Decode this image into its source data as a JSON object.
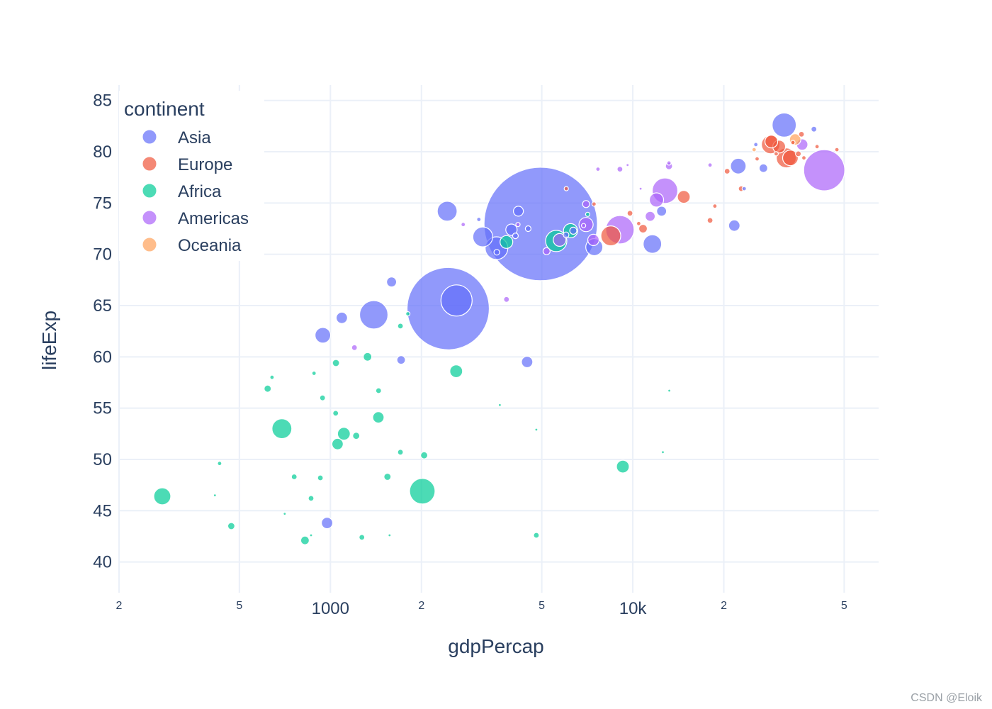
{
  "chart_data": {
    "type": "scatter",
    "variant": "bubble",
    "xlabel": "gdpPercap",
    "ylabel": "lifeExp",
    "xscale": "log",
    "xlim": [
      200,
      65000
    ],
    "ylim": [
      37,
      86.5
    ],
    "x_ticks": [
      {
        "value": 200,
        "label": "2"
      },
      {
        "value": 500,
        "label": "5"
      },
      {
        "value": 1000,
        "label": "1000"
      },
      {
        "value": 2000,
        "label": "2"
      },
      {
        "value": 5000,
        "label": "5"
      },
      {
        "value": 10000,
        "label": "10k"
      },
      {
        "value": 20000,
        "label": "2"
      },
      {
        "value": 50000,
        "label": "5"
      }
    ],
    "y_ticks": [
      40,
      45,
      50,
      55,
      60,
      65,
      70,
      75,
      80,
      85
    ],
    "legend": {
      "title": "continent",
      "placement": "top-left",
      "items": [
        {
          "name": "Asia",
          "color": "#636efa"
        },
        {
          "name": "Europe",
          "color": "#ef553b"
        },
        {
          "name": "Africa",
          "color": "#00cc96"
        },
        {
          "name": "Americas",
          "color": "#ab63fa"
        },
        {
          "name": "Oceania",
          "color": "#ffa15a"
        }
      ]
    },
    "series": [
      {
        "name": "Asia",
        "color": "#636efa",
        "points": [
          [
            4959,
            72.96,
            80
          ],
          [
            2452,
            64.7,
            58
          ],
          [
            31656,
            82.6,
            17
          ],
          [
            3541,
            70.6,
            16
          ],
          [
            2612,
            65.5,
            22
          ],
          [
            1391,
            64.1,
            20
          ],
          [
            2433,
            74.2,
            14
          ],
          [
            3190,
            71.7,
            14
          ],
          [
            12452,
            74.2,
            7
          ],
          [
            11606,
            71.0,
            13
          ],
          [
            7458,
            70.7,
            12
          ],
          [
            22316,
            78.6,
            11
          ],
          [
            21655,
            72.8,
            8
          ],
          [
            944,
            62.1,
            11
          ],
          [
            1091,
            63.8,
            8
          ],
          [
            1593,
            67.3,
            7
          ],
          [
            4185,
            74.2,
            7
          ],
          [
            3970,
            72.4,
            8
          ],
          [
            4471,
            59.5,
            8
          ],
          [
            975,
            43.8,
            8
          ],
          [
            1713,
            59.7,
            6
          ],
          [
            4508,
            72.5,
            4
          ],
          [
            3096,
            73.4,
            3
          ],
          [
            27040,
            78.4,
            6
          ],
          [
            23351,
            76.4,
            3
          ],
          [
            25523,
            80.7,
            3
          ],
          [
            39724,
            82.2,
            4
          ],
          [
            3549,
            70.2,
            4
          ],
          [
            4091,
            71.8,
            4
          ],
          [
            6017,
            71.9,
            4
          ],
          [
            6356,
            72.3,
            5
          ]
        ]
      },
      {
        "name": "Europe",
        "color": "#ef553b",
        "points": [
          [
            32170,
            79.4,
            14
          ],
          [
            28569,
            80.7,
            13
          ],
          [
            33203,
            79.4,
            11
          ],
          [
            30470,
            80.5,
            9
          ],
          [
            28718,
            81.0,
            9
          ],
          [
            8458,
            71.8,
            14
          ],
          [
            14744,
            75.6,
            9
          ],
          [
            10808,
            72.5,
            6
          ],
          [
            18009,
            73.3,
            4
          ],
          [
            20510,
            78.1,
            4
          ],
          [
            36126,
            81.7,
            4
          ],
          [
            22833,
            76.4,
            4
          ],
          [
            9787,
            74.0,
            4
          ],
          [
            7446,
            74.9,
            3
          ],
          [
            35278,
            79.8,
            4
          ],
          [
            25768,
            79.3,
            3
          ],
          [
            33860,
            80.9,
            3
          ],
          [
            40676,
            80.5,
            3
          ],
          [
            18678,
            74.7,
            3
          ],
          [
            36798,
            79.4,
            3
          ],
          [
            47307,
            80.2,
            3
          ],
          [
            6026,
            76.4,
            3
          ],
          [
            10461,
            73.0,
            3
          ],
          [
            29796,
            79.8,
            3
          ]
        ]
      },
      {
        "name": "Africa",
        "color": "#00cc96",
        "points": [
          [
            2013,
            46.9,
            18
          ],
          [
            5581,
            71.3,
            15
          ],
          [
            691,
            53.0,
            14
          ],
          [
            278,
            46.4,
            12
          ],
          [
            9269,
            49.3,
            9
          ],
          [
            6223,
            72.3,
            10
          ],
          [
            3820,
            71.2,
            9
          ],
          [
            2605,
            58.6,
            9
          ],
          [
            1441,
            54.1,
            8
          ],
          [
            1108,
            52.5,
            9
          ],
          [
            1056,
            51.5,
            8
          ],
          [
            824,
            42.1,
            6
          ],
          [
            1327,
            60.0,
            6
          ],
          [
            1544,
            48.3,
            5
          ],
          [
            2042,
            50.4,
            5
          ],
          [
            1043,
            59.4,
            5
          ],
          [
            1217,
            52.3,
            5
          ],
          [
            620,
            56.9,
            5
          ],
          [
            470,
            43.5,
            5
          ],
          [
            4797,
            42.6,
            4
          ],
          [
            863,
            46.2,
            4
          ],
          [
            926,
            48.2,
            4
          ],
          [
            1271,
            42.4,
            4
          ],
          [
            759,
            48.3,
            4
          ],
          [
            1704,
            63.0,
            4
          ],
          [
            1704,
            50.7,
            4
          ],
          [
            1041,
            54.5,
            4
          ],
          [
            942,
            56.0,
            4
          ],
          [
            1443,
            56.7,
            4
          ],
          [
            883,
            58.4,
            3
          ],
          [
            430,
            49.6,
            3
          ],
          [
            641,
            58.0,
            3
          ],
          [
            7093,
            73.9,
            3
          ],
          [
            1803,
            64.2,
            3
          ],
          [
            4797,
            52.9,
            2
          ],
          [
            3632,
            55.3,
            2
          ],
          [
            12570,
            50.7,
            2
          ],
          [
            13206,
            56.7,
            2
          ],
          [
            415,
            46.5,
            2
          ],
          [
            863,
            42.6,
            2
          ],
          [
            706,
            44.7,
            2
          ],
          [
            1569,
            42.6,
            2
          ]
        ]
      },
      {
        "name": "Americas",
        "color": "#ab63fa",
        "points": [
          [
            42952,
            78.2,
            29
          ],
          [
            9066,
            72.4,
            20
          ],
          [
            12779,
            76.2,
            18
          ],
          [
            11978,
            75.3,
            10
          ],
          [
            7007,
            72.9,
            10
          ],
          [
            5728,
            71.4,
            9
          ],
          [
            7408,
            71.4,
            8
          ],
          [
            7007,
            74.9,
            5
          ],
          [
            36319,
            80.7,
            8
          ],
          [
            11416,
            73.7,
            7
          ],
          [
            13172,
            78.6,
            5
          ],
          [
            5186,
            70.3,
            5
          ],
          [
            3822,
            65.6,
            4
          ],
          [
            1201,
            60.9,
            4
          ],
          [
            9065,
            78.3,
            4
          ],
          [
            18009,
            78.7,
            3
          ],
          [
            7670,
            78.3,
            3
          ],
          [
            6873,
            72.8,
            3
          ],
          [
            4172,
            72.9,
            3
          ],
          [
            13172,
            78.9,
            3
          ],
          [
            9609,
            78.7,
            2
          ],
          [
            10612,
            76.4,
            2
          ],
          [
            2749,
            72.9,
            3
          ]
        ]
      },
      {
        "name": "Oceania",
        "color": "#ffa15a",
        "points": [
          [
            34435,
            81.2,
            8
          ],
          [
            25185,
            80.2,
            3
          ]
        ]
      }
    ]
  },
  "watermark": "CSDN @Eloik"
}
